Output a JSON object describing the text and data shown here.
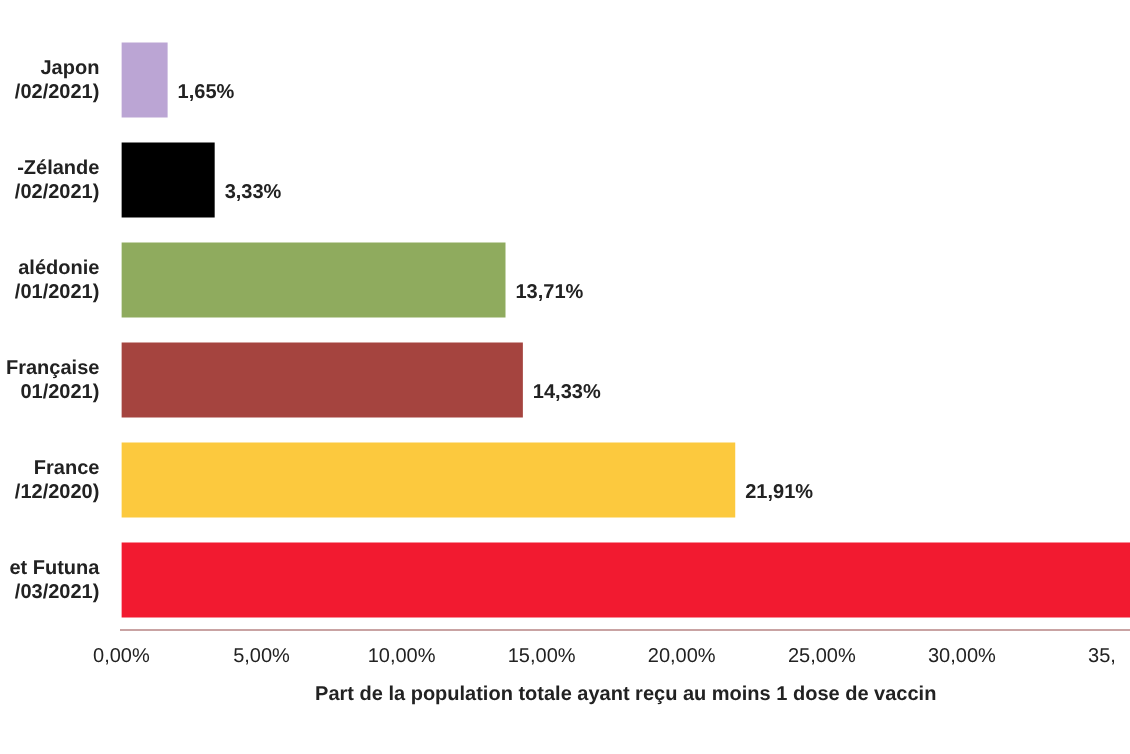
{
  "chart_data": {
    "type": "bar",
    "orientation": "horizontal",
    "xlabel": "Part de la population totale ayant reçu au moins 1 dose de vaccin",
    "categories": [
      "Japon\n/02/2021)",
      "-Zélande\n/02/2021)",
      "alédonie\n/01/2021)",
      "Française\n01/2021)",
      "France\n/12/2020)",
      "et Futuna\n/03/2021)"
    ],
    "values": [
      1.65,
      3.33,
      13.71,
      14.33,
      21.91,
      36
    ],
    "colors": [
      "#bba5d4",
      "#000000",
      "#8fab5e",
      "#a5443f",
      "#fcc93e",
      "#f21a30"
    ],
    "value_labels": [
      "1,65%",
      "3,33%",
      "13,71%",
      "14,33%",
      "21,91%",
      null
    ],
    "xlim": [
      0,
      36
    ],
    "xticks": [
      {
        "value": 0,
        "label": "0,00%"
      },
      {
        "value": 5,
        "label": "5,00%"
      },
      {
        "value": 10,
        "label": "10,00%"
      },
      {
        "value": 15,
        "label": "15,00%"
      },
      {
        "value": 20,
        "label": "20,00%"
      },
      {
        "value": 25,
        "label": "25,00%"
      },
      {
        "value": 30,
        "label": "30,00%"
      },
      {
        "value": 35,
        "label": "35,"
      }
    ],
    "grid": false,
    "legend": false
  }
}
